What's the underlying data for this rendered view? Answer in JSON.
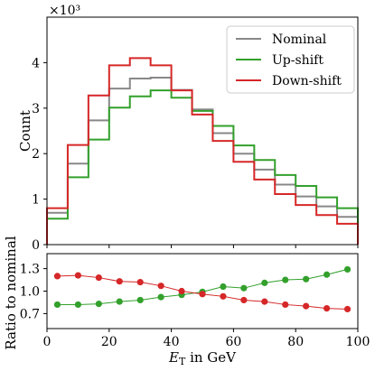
{
  "chart_data": [
    {
      "type": "line",
      "subtype": "step-histogram",
      "ylabel": "Count",
      "y_multiplier_label": "×10³",
      "y_multiplier": 1000,
      "xlim": [
        0,
        100
      ],
      "ylim": [
        0,
        5000
      ],
      "yticks": [
        0,
        1000,
        2000,
        3000,
        4000
      ],
      "ytick_labels": [
        "0",
        "1",
        "2",
        "3",
        "4"
      ],
      "xticks": [
        0,
        20,
        40,
        60,
        80,
        100
      ],
      "bin_edges": [
        0,
        6.67,
        13.33,
        20,
        26.67,
        33.33,
        40,
        46.67,
        53.33,
        60,
        66.67,
        73.33,
        80,
        86.67,
        93.33,
        100
      ],
      "legend": "top-right",
      "grid": false,
      "series": [
        {
          "name": "Nominal",
          "color": "#888888",
          "values": [
            700,
            1780,
            2730,
            3430,
            3650,
            3670,
            3400,
            2970,
            2450,
            2000,
            1650,
            1320,
            1060,
            840,
            610
          ]
        },
        {
          "name": "Up-shift",
          "color": "#33a02c",
          "values": [
            570,
            1480,
            2310,
            3010,
            3260,
            3390,
            3230,
            2940,
            2610,
            2180,
            1860,
            1530,
            1290,
            1040,
            800
          ]
        },
        {
          "name": "Down-shift",
          "color": "#d62728",
          "values": [
            800,
            2190,
            3280,
            3940,
            4100,
            3940,
            3390,
            2860,
            2280,
            1820,
            1430,
            1110,
            870,
            650,
            460
          ]
        }
      ]
    },
    {
      "type": "scatter",
      "ylabel": "Ratio to nominal",
      "xlabel": "E_T in GeV",
      "xlim": [
        0,
        100
      ],
      "ylim": [
        0.5,
        1.5
      ],
      "xticks": [
        0,
        20,
        40,
        60,
        80,
        100
      ],
      "xtick_labels": [
        "0",
        "20",
        "40",
        "60",
        "80",
        "100"
      ],
      "yticks": [
        0.7,
        1.0,
        1.3
      ],
      "ytick_labels": [
        "0.7",
        "1.0",
        "1.3"
      ],
      "grid": false,
      "x": [
        3.33,
        10,
        16.67,
        23.33,
        30,
        36.67,
        43.33,
        50,
        56.67,
        63.33,
        70,
        76.67,
        83.33,
        90,
        96.67
      ],
      "series": [
        {
          "name": "Up-shift",
          "color": "#33a02c",
          "values": [
            0.82,
            0.82,
            0.83,
            0.86,
            0.88,
            0.92,
            0.95,
            0.99,
            1.06,
            1.04,
            1.11,
            1.15,
            1.16,
            1.22,
            1.29
          ]
        },
        {
          "name": "Down-shift",
          "color": "#d62728",
          "values": [
            1.2,
            1.21,
            1.18,
            1.13,
            1.12,
            1.07,
            1.0,
            0.96,
            0.93,
            0.88,
            0.86,
            0.82,
            0.8,
            0.77,
            0.76
          ]
        }
      ]
    }
  ]
}
